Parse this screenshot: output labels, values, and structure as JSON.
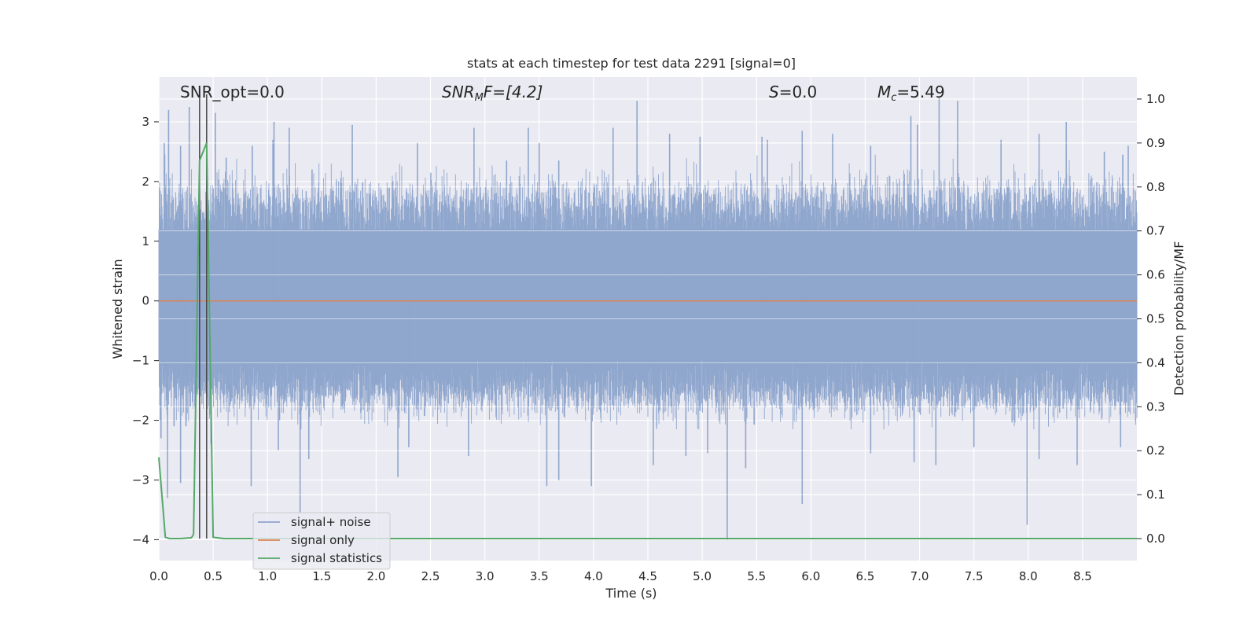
{
  "chart_data": {
    "type": "line",
    "title": "stats at each timestep for test data 2291 [signal=0]",
    "xlabel": "Time (s)",
    "ylabel": "Whitened strain",
    "y2label": "Detection probability/MF",
    "xlim": [
      0.0,
      9.0
    ],
    "ylim": [
      -4.35,
      3.75
    ],
    "y2lim": [
      -0.05,
      1.05
    ],
    "grid": true,
    "x_ticks": [
      "0.0",
      "0.5",
      "1.0",
      "1.5",
      "2.0",
      "2.5",
      "3.0",
      "3.5",
      "4.0",
      "4.5",
      "5.0",
      "5.5",
      "6.0",
      "6.5",
      "7.0",
      "7.5",
      "8.0",
      "8.5"
    ],
    "y_ticks": [
      "3",
      "2",
      "1",
      "0",
      "−1",
      "−2",
      "−3",
      "−4"
    ],
    "y2_ticks": [
      "1.0",
      "0.9",
      "0.8",
      "0.7",
      "0.6",
      "0.5",
      "0.4",
      "0.3",
      "0.2",
      "0.1",
      "0.0"
    ],
    "annotations": {
      "snr_opt": "SNR_opt=0.0",
      "snr_mf_main": "SNR",
      "snr_mf_sub": "M",
      "snr_mf_rest": "F=[4.2]",
      "s_main": "S",
      "s_rest": "=0.0",
      "mc_main": "M",
      "mc_sub": "c",
      "mc_rest": "=5.49"
    },
    "legend": {
      "placement": "lower-left",
      "entries": [
        "signal+ noise",
        "signal only",
        "signal statistics"
      ]
    },
    "vlines_x": [
      0.375,
      0.44
    ],
    "series": [
      {
        "name": "signal+ noise",
        "axis": "left",
        "color": "#8fa6cd",
        "description": "whitened strain noise, approx. gaussian, envelope ~-1.9..+2.3",
        "spikes": [
          [
            0.05,
            2.65
          ],
          [
            0.09,
            3.2
          ],
          [
            0.2,
            2.6
          ],
          [
            0.28,
            3.25
          ],
          [
            0.52,
            3.15
          ],
          [
            0.62,
            2.4
          ],
          [
            0.86,
            2.6
          ],
          [
            1.05,
            2.7
          ],
          [
            1.06,
            3.0
          ],
          [
            1.2,
            2.9
          ],
          [
            1.41,
            2.2
          ],
          [
            1.78,
            2.95
          ],
          [
            2.38,
            2.65
          ],
          [
            2.9,
            2.9
          ],
          [
            3.2,
            2.35
          ],
          [
            3.4,
            2.9
          ],
          [
            3.5,
            2.65
          ],
          [
            3.68,
            2.35
          ],
          [
            4.18,
            2.9
          ],
          [
            4.4,
            3.35
          ],
          [
            4.7,
            2.8
          ],
          [
            4.98,
            2.75
          ],
          [
            5.55,
            2.75
          ],
          [
            5.6,
            2.7
          ],
          [
            5.92,
            2.85
          ],
          [
            6.2,
            2.8
          ],
          [
            6.55,
            2.6
          ],
          [
            6.92,
            3.1
          ],
          [
            6.98,
            2.95
          ],
          [
            7.18,
            3.4
          ],
          [
            7.35,
            3.35
          ],
          [
            7.75,
            2.7
          ],
          [
            8.1,
            2.8
          ],
          [
            8.35,
            3.0
          ],
          [
            8.7,
            2.5
          ],
          [
            8.87,
            2.45
          ],
          [
            8.92,
            2.6
          ],
          [
            0.02,
            -2.3
          ],
          [
            0.08,
            -3.3
          ],
          [
            0.14,
            -2.1
          ],
          [
            0.2,
            -3.05
          ],
          [
            0.25,
            -2.1
          ],
          [
            0.48,
            -2.4
          ],
          [
            0.85,
            -3.1
          ],
          [
            1.1,
            -2.5
          ],
          [
            1.3,
            -3.55
          ],
          [
            1.38,
            -2.65
          ],
          [
            2.2,
            -2.95
          ],
          [
            2.3,
            -2.45
          ],
          [
            2.85,
            -2.6
          ],
          [
            3.57,
            -3.1
          ],
          [
            3.68,
            -3.0
          ],
          [
            3.98,
            -3.1
          ],
          [
            4.55,
            -2.75
          ],
          [
            4.85,
            -2.6
          ],
          [
            5.05,
            -2.55
          ],
          [
            5.23,
            -4.0
          ],
          [
            5.4,
            -2.8
          ],
          [
            5.92,
            -3.4
          ],
          [
            6.55,
            -2.55
          ],
          [
            6.95,
            -2.7
          ],
          [
            7.15,
            -2.75
          ],
          [
            7.5,
            -2.45
          ],
          [
            7.99,
            -3.75
          ],
          [
            8.1,
            -2.65
          ],
          [
            8.45,
            -2.75
          ],
          [
            8.85,
            -2.45
          ]
        ],
        "envelope_top": 2.25,
        "envelope_bottom": -1.9,
        "dense_core": [
          -1.0,
          1.2
        ]
      },
      {
        "name": "signal only",
        "axis": "left",
        "color": "#dd8452",
        "x": [
          0.0,
          9.0
        ],
        "y": [
          0.0,
          0.0
        ]
      },
      {
        "name": "signal statistics",
        "axis": "right",
        "color": "#55a868",
        "x": [
          0.0,
          0.06,
          0.1,
          0.2,
          0.3,
          0.32,
          0.375,
          0.44,
          0.5,
          0.6,
          1.0,
          2.0,
          3.0,
          4.0,
          5.0,
          6.0,
          7.0,
          8.0,
          9.0
        ],
        "y": [
          0.185,
          0.003,
          0.0,
          0.0,
          0.002,
          0.01,
          0.86,
          0.9,
          0.003,
          0.0,
          0.0,
          0.0,
          0.0,
          0.0,
          0.0,
          0.0,
          0.0,
          0.0,
          0.0
        ]
      }
    ]
  },
  "colors": {
    "plot_background": "#eaeaf2",
    "grid": "#ffffff",
    "vline": "#444444",
    "legend_bg": "#eaeaf2",
    "legend_border": "#cccccc"
  }
}
